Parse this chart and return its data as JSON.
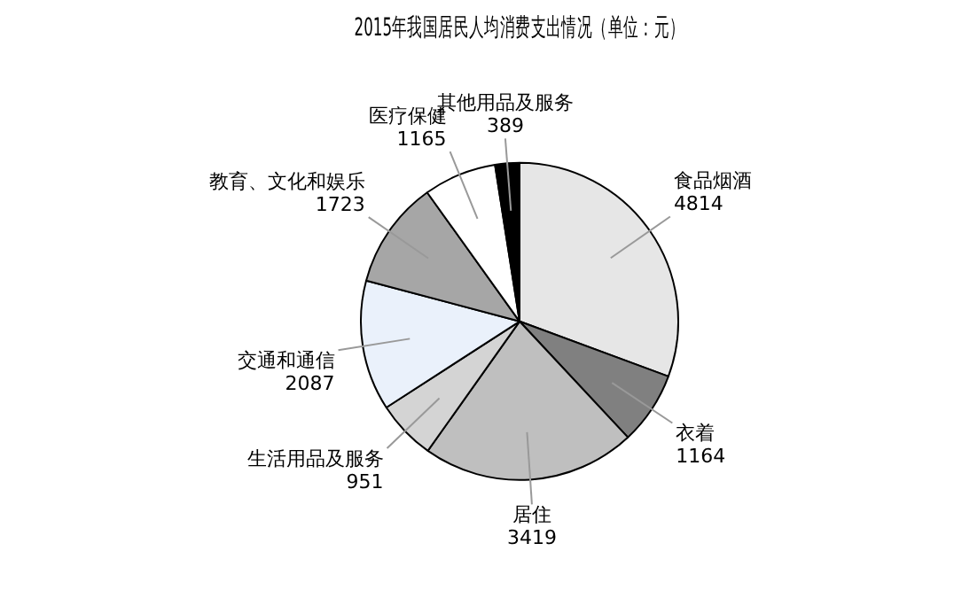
{
  "chart_data": {
    "type": "pie",
    "title": "2015年我国居民人均消费支出情况（单位：元）",
    "categories": [
      "食品烟酒",
      "衣着",
      "居住",
      "生活用品及服务",
      "交通和通信",
      "教育、文化和娱乐",
      "医疗保健",
      "其他用品及服务"
    ],
    "values": [
      4814,
      1164,
      3419,
      951,
      2087,
      1723,
      1165,
      389
    ],
    "colors": [
      "#e6e6e6",
      "#808080",
      "#bfbfbf",
      "#d4d4d4",
      "#eaf1fb",
      "#a6a6a6",
      "#ffffff",
      "#000000"
    ],
    "data_labels": true,
    "legend": false
  }
}
